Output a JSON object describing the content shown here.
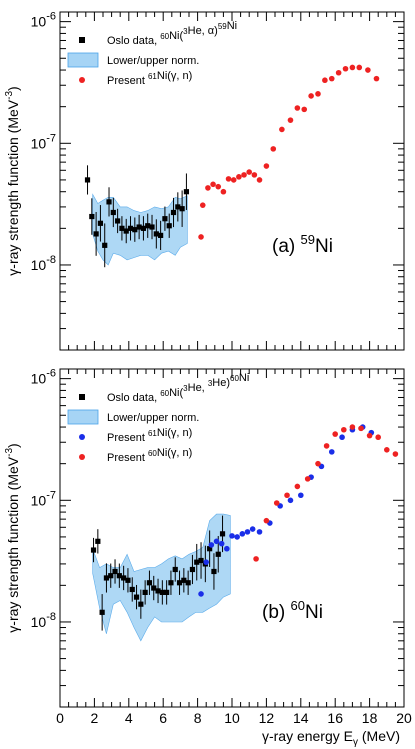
{
  "x_axis": {
    "label": "γ-ray energy E",
    "label_sub": "γ",
    "label_unit": " (MeV)",
    "range": [
      0,
      20
    ],
    "tick_labels": [
      "0",
      "2",
      "4",
      "6",
      "8",
      "10",
      "12",
      "14",
      "16",
      "18",
      "20"
    ]
  },
  "y_axis_label": "γ-ray strength function (MeV",
  "y_axis_label_sup": "-3",
  "y_axis_label_end": ")",
  "colors": {
    "oslo": "#000000",
    "band": "#a6d4f5",
    "band_edge": "#4aa3e8",
    "red": "#ee2222",
    "blue": "#1a2ee8"
  },
  "chart_data": [
    {
      "type": "scatter",
      "panel_label": "(a) ",
      "panel_label_sup": "59",
      "panel_label_end": "Ni",
      "yscale": "log",
      "ylim": [
        2e-09,
        1.2e-06
      ],
      "y_tick_labels": [
        {
          "base": "10",
          "exp": "-6"
        },
        {
          "base": "10",
          "exp": "-7"
        },
        {
          "base": "10",
          "exp": "-8"
        }
      ],
      "legend": [
        {
          "kind": "square",
          "pre": "Oslo data, ",
          "sup1": "60",
          "mid": "Ni(",
          "sup2": "3",
          "post": "He, α)",
          "sup3": "59",
          "end": "Ni"
        },
        {
          "kind": "band",
          "text": "Lower/upper norm."
        },
        {
          "kind": "red",
          "pre": "Present ",
          "sup1": "61",
          "mid": "Ni(γ, n)"
        }
      ],
      "band": {
        "x": [
          1.9,
          2.2,
          2.5,
          2.8,
          3.1,
          3.5,
          3.9,
          4.3,
          4.7,
          5.1,
          5.5,
          5.9,
          6.3,
          6.7,
          7.0,
          7.4
        ],
        "lower": [
          1.8e-08,
          1.3e-08,
          1.1e-08,
          1e-08,
          1.25e-08,
          1.2e-08,
          1.1e-08,
          1.15e-08,
          1.2e-08,
          1.2e-08,
          1.1e-08,
          1.25e-08,
          1.3e-08,
          1.2e-08,
          1.4e-08,
          1.5e-08
        ],
        "upper": [
          3.8e-08,
          3.2e-08,
          3.4e-08,
          3.6e-08,
          3.6e-08,
          3e-08,
          3e-08,
          2.8e-08,
          2.7e-08,
          2.8e-08,
          3e-08,
          2.9e-08,
          3e-08,
          3.6e-08,
          3.5e-08,
          3.7e-08
        ]
      },
      "oslo": {
        "x": [
          1.6,
          1.85,
          2.1,
          2.35,
          2.6,
          2.85,
          3.1,
          3.35,
          3.6,
          3.85,
          4.1,
          4.35,
          4.6,
          4.85,
          5.1,
          5.35,
          5.6,
          5.85,
          6.1,
          6.35,
          6.6,
          6.85,
          7.1,
          7.35
        ],
        "y": [
          5e-08,
          2.5e-08,
          1.8e-08,
          2.2e-08,
          1.45e-08,
          3.3e-08,
          2.7e-08,
          2.3e-08,
          2e-08,
          1.9e-08,
          2e-08,
          1.95e-08,
          2.05e-08,
          2e-08,
          2.1e-08,
          2.05e-08,
          1.8e-08,
          1.75e-08,
          2.4e-08,
          2.1e-08,
          2.7e-08,
          3e-08,
          2.9e-08,
          4e-08
        ],
        "err": [
          0.12,
          0.15,
          0.18,
          0.15,
          0.18,
          0.12,
          0.12,
          0.1,
          0.1,
          0.1,
          0.1,
          0.1,
          0.1,
          0.1,
          0.1,
          0.1,
          0.12,
          0.12,
          0.1,
          0.1,
          0.12,
          0.12,
          0.15,
          0.15
        ]
      },
      "series": [
        {
          "color_key": "red",
          "x": [
            8.2,
            8.3,
            8.6,
            8.9,
            9.2,
            9.5,
            9.8,
            10.1,
            10.4,
            10.7,
            11.0,
            11.3,
            11.6,
            12.0,
            12.4,
            12.9,
            13.4,
            13.8,
            14.2,
            14.6,
            15.0,
            15.4,
            15.8,
            16.2,
            16.6,
            17.0,
            17.4,
            17.9,
            18.4
          ],
          "y": [
            1.7e-08,
            3.1e-08,
            4.3e-08,
            4.6e-08,
            4.4e-08,
            4e-08,
            5.1e-08,
            5e-08,
            5.3e-08,
            5.5e-08,
            5.8e-08,
            5.5e-08,
            5e-08,
            6.5e-08,
            9e-08,
            1.3e-07,
            1.55e-07,
            1.95e-07,
            1.9e-07,
            2.45e-07,
            2.55e-07,
            3.3e-07,
            3.4e-07,
            3.8e-07,
            4.1e-07,
            4.2e-07,
            4.2e-07,
            4e-07,
            3.4e-07
          ]
        }
      ]
    },
    {
      "type": "scatter",
      "panel_label": "(b) ",
      "panel_label_sup": "60",
      "panel_label_end": "Ni",
      "yscale": "log",
      "ylim": [
        2e-09,
        1.2e-06
      ],
      "y_tick_labels": [
        {
          "base": "10",
          "exp": "-6"
        },
        {
          "base": "10",
          "exp": "-7"
        },
        {
          "base": "10",
          "exp": "-8"
        }
      ],
      "legend": [
        {
          "kind": "square",
          "pre": "Oslo data, ",
          "sup1": "60",
          "mid": "Ni(",
          "sup2": "3",
          "post": "He, ",
          "sup3": "3",
          "end": "He)",
          "sup4": "60",
          "end2": "Ni"
        },
        {
          "kind": "band",
          "text": "Lower/upper norm."
        },
        {
          "kind": "blue",
          "pre": "Present ",
          "sup1": "61",
          "mid": "Ni(γ, n)"
        },
        {
          "kind": "red",
          "pre": "Present ",
          "sup1": "60",
          "mid": "Ni(γ, n)"
        }
      ],
      "band": {
        "x": [
          1.9,
          2.3,
          2.7,
          3.1,
          3.5,
          3.9,
          4.3,
          4.7,
          5.1,
          5.5,
          5.9,
          6.3,
          6.7,
          7.1,
          7.5,
          7.9,
          8.3,
          8.7,
          9.1,
          9.5,
          9.9
        ],
        "lower": [
          2.5e-08,
          1.3e-08,
          8e-09,
          1.4e-08,
          1.5e-08,
          1.2e-08,
          9e-09,
          7e-09,
          9e-09,
          1.1e-08,
          1e-08,
          1e-08,
          1e-08,
          1e-08,
          1.1e-08,
          1.2e-08,
          1.2e-08,
          1.3e-08,
          1.4e-08,
          1.6e-08,
          1.7e-08
        ],
        "upper": [
          4e-08,
          2.8e-08,
          3e-08,
          2.8e-08,
          2.8e-08,
          3.6e-08,
          2.6e-08,
          2.7e-08,
          2.8e-08,
          2.8e-08,
          3e-08,
          3.3e-08,
          3.5e-08,
          3.3e-08,
          3.6e-08,
          3.8e-08,
          4.1e-08,
          6.8e-08,
          7.7e-08,
          7.7e-08,
          7.5e-08
        ]
      },
      "oslo": {
        "x": [
          1.95,
          2.2,
          2.45,
          2.7,
          2.95,
          3.2,
          3.45,
          3.7,
          3.95,
          4.2,
          4.45,
          4.7,
          4.95,
          5.2,
          5.45,
          5.7,
          5.95,
          6.2,
          6.45,
          6.7,
          6.95,
          7.2,
          7.45,
          7.7,
          7.95,
          8.2,
          8.45,
          8.7,
          8.95,
          9.2,
          9.45
        ],
        "y": [
          3.9e-08,
          4.6e-08,
          1.2e-08,
          2.3e-08,
          2.4e-08,
          2.6e-08,
          2.4e-08,
          2.3e-08,
          2.2e-08,
          1.85e-08,
          1.6e-08,
          1.4e-08,
          1.75e-08,
          2.1e-08,
          1.9e-08,
          1.8e-08,
          1.75e-08,
          1.75e-08,
          2.1e-08,
          2.7e-08,
          2.1e-08,
          2.2e-08,
          2.1e-08,
          2.7e-08,
          3.1e-08,
          3.2e-08,
          3e-08,
          4e-08,
          2.6e-08,
          3.6e-08,
          5.3e-08
        ],
        "err": [
          0.1,
          0.1,
          0.15,
          0.12,
          0.1,
          0.1,
          0.1,
          0.1,
          0.1,
          0.1,
          0.1,
          0.12,
          0.1,
          0.1,
          0.1,
          0.1,
          0.1,
          0.1,
          0.1,
          0.1,
          0.1,
          0.1,
          0.1,
          0.12,
          0.15,
          0.15,
          0.15,
          0.15,
          0.15,
          0.15,
          0.15
        ]
      },
      "series": [
        {
          "color_key": "blue",
          "x": [
            8.2,
            8.5,
            8.8,
            9.1,
            9.4,
            9.7,
            10.0,
            10.3,
            10.6,
            10.9,
            11.2,
            11.6,
            12.2,
            12.8,
            13.4,
            14.0,
            14.6,
            15.2,
            15.8,
            16.4,
            17.0,
            17.6,
            18.1
          ],
          "y": [
            1.7e-08,
            3.1e-08,
            4.3e-08,
            4.6e-08,
            4.4e-08,
            4e-08,
            5.1e-08,
            5e-08,
            5.3e-08,
            5.5e-08,
            5.8e-08,
            5.5e-08,
            6.5e-08,
            9e-08,
            1e-07,
            1.1e-07,
            1.55e-07,
            1.9e-07,
            2.5e-07,
            3.3e-07,
            3.8e-07,
            4e-07,
            3.6e-07
          ]
        },
        {
          "color_key": "red",
          "x": [
            11.4,
            12.0,
            12.6,
            13.2,
            13.8,
            14.4,
            15.0,
            15.5,
            16.0,
            16.5,
            17.0,
            17.5,
            18.0,
            18.5,
            19.0,
            19.5
          ],
          "y": [
            3.3e-08,
            6.8e-08,
            9.5e-08,
            1.1e-07,
            1.3e-07,
            1.5e-07,
            2e-07,
            2.8e-07,
            3.5e-07,
            3.8e-07,
            4e-07,
            3.9e-07,
            3.4e-07,
            3.3e-07,
            2.6e-07,
            2.4e-07
          ]
        }
      ]
    }
  ]
}
